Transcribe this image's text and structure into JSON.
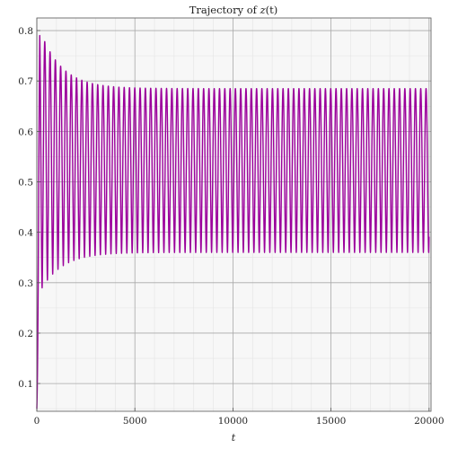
{
  "chart_data": {
    "type": "line",
    "title": "Trajectory of z(t)",
    "title_parts": {
      "prefix": "Trajectory of ",
      "var": "z",
      "suffix": "(t)"
    },
    "xlabel": "t",
    "ylabel": "",
    "xlim": [
      0,
      20100
    ],
    "ylim": [
      0.045,
      0.825
    ],
    "xticks": [
      0,
      5000,
      10000,
      15000,
      20000
    ],
    "xtick_labels": [
      "0",
      "5000",
      "10000",
      "15000",
      "20000"
    ],
    "yticks": [
      0.1,
      0.2,
      0.3,
      0.4,
      0.5,
      0.6,
      0.7,
      0.8
    ],
    "ytick_labels": [
      "0.1",
      "0.2",
      "0.3",
      "0.4",
      "0.5",
      "0.6",
      "0.7",
      "0.8"
    ],
    "grid": true,
    "line_color": "#9b009b",
    "series": [
      {
        "values_description_free": true,
        "x_range": [
          0,
          20000
        ],
        "initial_value": 0.05,
        "first_peak": 0.82,
        "first_trough": 0.27,
        "settled_max": 0.685,
        "settled_min": 0.36,
        "oscillation_period": 270,
        "transient_end_t": 3500
      }
    ]
  }
}
